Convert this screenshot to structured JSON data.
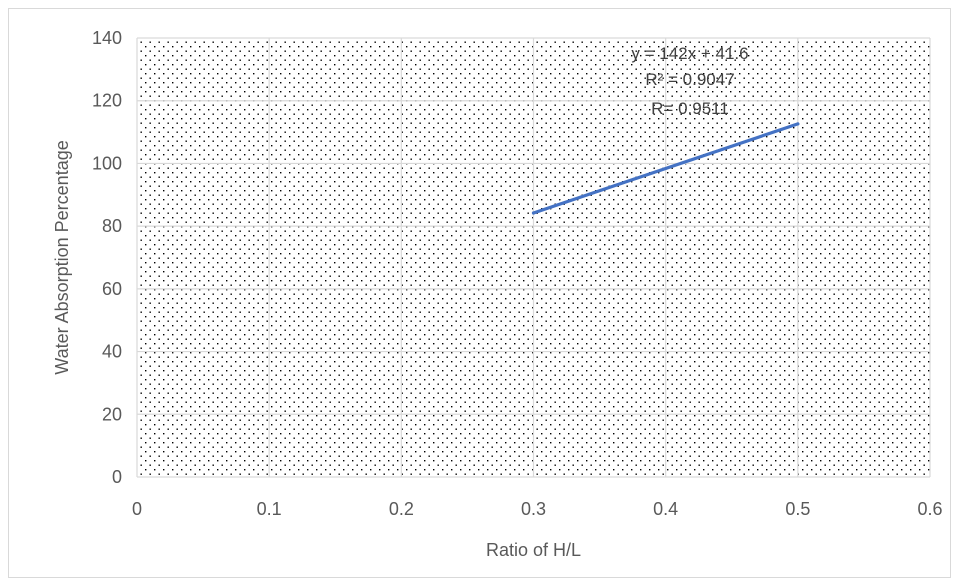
{
  "chart_data": {
    "type": "line",
    "title": "",
    "xlabel": "Ratio of H/L",
    "ylabel": "Water Absorption Percentage",
    "xlim": [
      0,
      0.6
    ],
    "ylim": [
      0,
      140
    ],
    "x_ticks": [
      "0",
      "0.1",
      "0.2",
      "0.3",
      "0.4",
      "0.5",
      "0.6"
    ],
    "y_ticks": [
      "0",
      "20",
      "40",
      "60",
      "80",
      "100",
      "120",
      "140"
    ],
    "grid": true,
    "plot_fill": "dotted",
    "series": [
      {
        "color": "#4472c4",
        "x": [
          0.3,
          0.5
        ],
        "y": [
          84.2,
          112.6
        ]
      }
    ],
    "annotations": [
      "y = 142x + 41.6",
      "R² = 0.9047",
      "R= 0.9511"
    ]
  }
}
